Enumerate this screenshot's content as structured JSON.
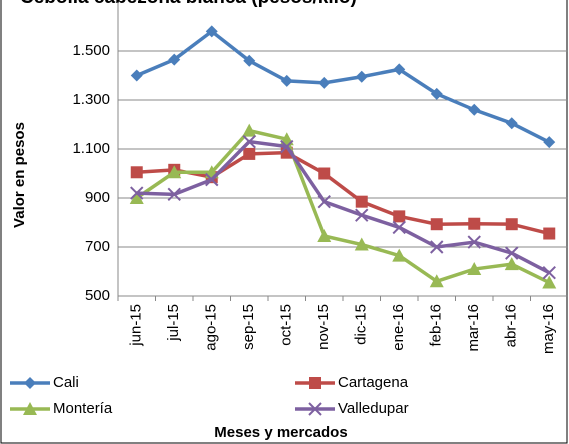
{
  "chart_data": {
    "type": "line",
    "title": "Cebolla cabezona blanca (pesos/kilo)",
    "x_label": "Meses y mercados",
    "y_label": "Valor en pesos",
    "categories": [
      "jun-15",
      "jul-15",
      "ago-15",
      "sep-15",
      "oct-15",
      "nov-15",
      "dic-15",
      "ene-16",
      "feb-16",
      "mar-16",
      "abr-16",
      "may-16"
    ],
    "series": [
      {
        "name": "Cali",
        "color": "#4a7ebb",
        "marker": "diamond",
        "values": [
          1400,
          1465,
          1580,
          1460,
          1378,
          1370,
          1395,
          1425,
          1325,
          1260,
          1205,
          1128
        ]
      },
      {
        "name": "Cartagena",
        "color": "#be4b48",
        "marker": "square",
        "values": [
          1005,
          1015,
          985,
          1080,
          1085,
          1000,
          885,
          825,
          793,
          795,
          793,
          755
        ]
      },
      {
        "name": "Montería",
        "color": "#98b954",
        "marker": "triangle",
        "values": [
          900,
          1005,
          1005,
          1175,
          1140,
          745,
          710,
          665,
          560,
          610,
          630,
          555
        ]
      },
      {
        "name": "Valledupar",
        "color": "#7d60a0",
        "marker": "x",
        "values": [
          920,
          915,
          975,
          1130,
          1110,
          885,
          830,
          780,
          700,
          720,
          675,
          595
        ]
      }
    ],
    "ylim": [
      500,
      1700
    ],
    "yticks": [
      {
        "value": 500,
        "label": "500"
      },
      {
        "value": 700,
        "label": "700"
      },
      {
        "value": 900,
        "label": "900"
      },
      {
        "value": 1100,
        "label": "1.100"
      },
      {
        "value": 1300,
        "label": "1.300"
      },
      {
        "value": 1500,
        "label": "1.500"
      }
    ],
    "grid": true
  }
}
